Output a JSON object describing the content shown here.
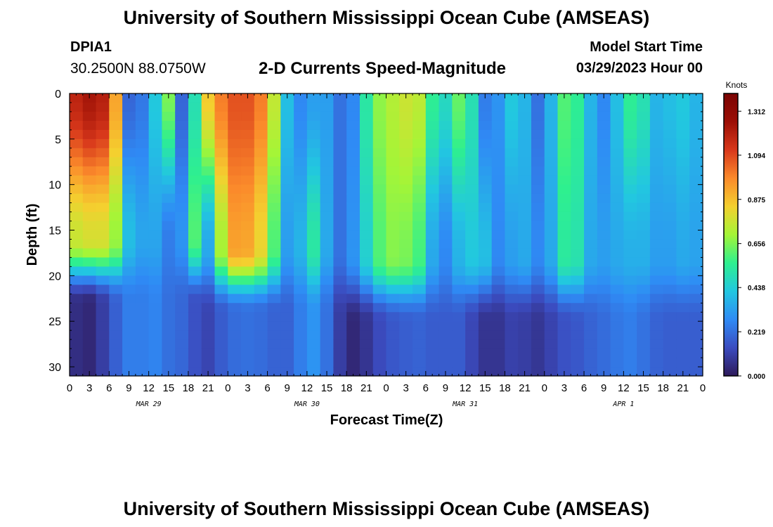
{
  "header": {
    "title": "University of Southern Mississippi Ocean Cube (AMSEAS)",
    "station_name": "DPIA1",
    "station_coords": "30.2500N  88.0750W",
    "subtitle": "2-D Currents Speed-Magnitude",
    "model_start_label": "Model Start Time",
    "model_start_value": "03/29/2023 Hour 00"
  },
  "footer": {
    "title": "University of Southern Mississippi Ocean Cube (AMSEAS)"
  },
  "chart_data": {
    "type": "heatmap",
    "title": "2-D Currents Speed-Magnitude",
    "xlabel": "Forecast Time(Z)",
    "ylabel": "Depth (ft)",
    "xlim": [
      0,
      96
    ],
    "ylim": [
      0,
      31
    ],
    "y_inverted": true,
    "x_tick_labels": [
      "0",
      "3",
      "6",
      "9",
      "12",
      "15",
      "18",
      "21",
      "0",
      "3",
      "6",
      "9",
      "12",
      "15",
      "18",
      "21",
      "0",
      "3",
      "6",
      "9",
      "12",
      "15",
      "18",
      "21",
      "0",
      "3",
      "6",
      "9",
      "12",
      "15",
      "18",
      "21",
      "0"
    ],
    "y_tick_labels": [
      "0",
      "5",
      "10",
      "15",
      "20",
      "25",
      "30"
    ],
    "y_tick_values": [
      0,
      5,
      10,
      15,
      20,
      25,
      30
    ],
    "date_labels": [
      {
        "label": "MAR 29",
        "hour": 12
      },
      {
        "label": "MAR 30",
        "hour": 36
      },
      {
        "label": "MAR 31",
        "hour": 60
      },
      {
        "label": "APR 1",
        "hour": 84
      }
    ],
    "colorbar": {
      "label": "Knots",
      "min": 0.0,
      "max": 1.4,
      "tick_labels": [
        "1.312",
        "1.094",
        "0.875",
        "0.656",
        "0.438",
        "0.219",
        "0.000"
      ],
      "tick_values": [
        1.312,
        1.094,
        0.875,
        0.656,
        0.438,
        0.219,
        0.0
      ],
      "colors": [
        "#2e1a5a",
        "#3b4cc0",
        "#2f8bf5",
        "#22c7e0",
        "#2ef08f",
        "#a4f537",
        "#f4d02f",
        "#fb8a2b",
        "#d8381b",
        "#9c0f06",
        "#7a0403"
      ]
    },
    "depths": [
      0,
      1,
      2,
      3,
      4,
      5,
      6,
      7,
      8,
      9,
      10,
      11,
      12,
      13,
      14,
      15,
      16,
      17,
      18,
      19,
      20,
      21,
      22,
      23,
      24,
      25,
      26,
      27,
      28,
      29,
      30,
      31
    ],
    "hours": [
      0,
      2,
      4,
      6,
      8,
      10,
      12,
      14,
      16,
      18,
      20,
      22,
      24,
      26,
      28,
      30,
      32,
      34,
      36,
      38,
      40,
      42,
      44,
      46,
      48,
      50,
      52,
      54,
      56,
      58,
      60,
      62,
      64,
      66,
      68,
      70,
      72,
      74,
      76,
      78,
      80,
      82,
      84,
      86,
      88,
      90,
      92,
      94,
      96
    ],
    "profiles": [
      {
        "hour": 0,
        "surface": 1.15,
        "mid": 0.75,
        "bottom": 0.08,
        "cline": 20
      },
      {
        "hour": 2,
        "surface": 1.22,
        "mid": 0.78,
        "bottom": 0.03,
        "cline": 20
      },
      {
        "hour": 4,
        "surface": 1.25,
        "mid": 0.8,
        "bottom": 0.05,
        "cline": 20
      },
      {
        "hour": 6,
        "surface": 1.15,
        "mid": 0.78,
        "bottom": 0.15,
        "cline": 20
      },
      {
        "hour": 8,
        "surface": 0.7,
        "mid": 0.6,
        "bottom": 0.22,
        "cline": 20
      },
      {
        "hour": 9,
        "surface": 0.2,
        "mid": 0.4,
        "bottom": 0.25,
        "cline": 20
      },
      {
        "hour": 10,
        "surface": 0.18,
        "mid": 0.3,
        "bottom": 0.22,
        "cline": 20
      },
      {
        "hour": 12,
        "surface": 0.3,
        "mid": 0.38,
        "bottom": 0.28,
        "cline": 20
      },
      {
        "hour": 14,
        "surface": 0.55,
        "mid": 0.3,
        "bottom": 0.25,
        "cline": 20
      },
      {
        "hour": 15,
        "surface": 0.65,
        "mid": 0.25,
        "bottom": 0.22,
        "cline": 20
      },
      {
        "hour": 16,
        "surface": 0.4,
        "mid": 0.28,
        "bottom": 0.2,
        "cline": 20
      },
      {
        "hour": 17,
        "surface": 0.2,
        "mid": 0.3,
        "bottom": 0.2,
        "cline": 20
      },
      {
        "hour": 18,
        "surface": 0.45,
        "mid": 0.45,
        "bottom": 0.2,
        "cline": 20
      },
      {
        "hour": 19,
        "surface": 0.5,
        "mid": 0.6,
        "bottom": 0.15,
        "cline": 20
      },
      {
        "hour": 20,
        "surface": 0.95,
        "mid": 0.4,
        "bottom": 0.12,
        "cline": 20
      },
      {
        "hour": 21,
        "surface": 0.85,
        "mid": 0.35,
        "bottom": 0.12,
        "cline": 21
      },
      {
        "hour": 22,
        "surface": 0.95,
        "mid": 0.5,
        "bottom": 0.15,
        "cline": 21
      },
      {
        "hour": 24,
        "surface": 1.05,
        "mid": 0.92,
        "bottom": 0.2,
        "cline": 21
      },
      {
        "hour": 26,
        "surface": 1.1,
        "mid": 0.95,
        "bottom": 0.22,
        "cline": 21
      },
      {
        "hour": 28,
        "surface": 1.05,
        "mid": 0.9,
        "bottom": 0.22,
        "cline": 21
      },
      {
        "hour": 30,
        "surface": 0.95,
        "mid": 0.75,
        "bottom": 0.2,
        "cline": 21
      },
      {
        "hour": 32,
        "surface": 0.55,
        "mid": 0.45,
        "bottom": 0.18,
        "cline": 21
      },
      {
        "hour": 34,
        "surface": 0.25,
        "mid": 0.2,
        "bottom": 0.2,
        "cline": 21
      },
      {
        "hour": 36,
        "surface": 0.3,
        "mid": 0.55,
        "bottom": 0.3,
        "cline": 21
      },
      {
        "hour": 38,
        "surface": 0.35,
        "mid": 0.5,
        "bottom": 0.3,
        "cline": 21
      },
      {
        "hour": 40,
        "surface": 0.3,
        "mid": 0.2,
        "bottom": 0.15,
        "cline": 21
      },
      {
        "hour": 42,
        "surface": 0.15,
        "mid": 0.25,
        "bottom": 0.05,
        "cline": 22
      },
      {
        "hour": 44,
        "surface": 0.4,
        "mid": 0.35,
        "bottom": 0.03,
        "cline": 22
      },
      {
        "hour": 46,
        "surface": 0.65,
        "mid": 0.55,
        "bottom": 0.12,
        "cline": 22
      },
      {
        "hour": 48,
        "surface": 0.7,
        "mid": 0.65,
        "bottom": 0.15,
        "cline": 22
      },
      {
        "hour": 50,
        "surface": 0.75,
        "mid": 0.68,
        "bottom": 0.18,
        "cline": 22
      },
      {
        "hour": 52,
        "surface": 0.78,
        "mid": 0.62,
        "bottom": 0.18,
        "cline": 22
      },
      {
        "hour": 54,
        "surface": 0.7,
        "mid": 0.55,
        "bottom": 0.2,
        "cline": 22
      },
      {
        "hour": 56,
        "surface": 0.4,
        "mid": 0.15,
        "bottom": 0.15,
        "cline": 22
      },
      {
        "hour": 58,
        "surface": 0.55,
        "mid": 0.4,
        "bottom": 0.2,
        "cline": 22
      },
      {
        "hour": 60,
        "surface": 0.7,
        "mid": 0.35,
        "bottom": 0.15,
        "cline": 22
      },
      {
        "hour": 62,
        "surface": 0.3,
        "mid": 0.5,
        "bottom": 0.1,
        "cline": 22
      },
      {
        "hour": 64,
        "surface": 0.2,
        "mid": 0.3,
        "bottom": 0.05,
        "cline": 22
      },
      {
        "hour": 66,
        "surface": 0.4,
        "mid": 0.25,
        "bottom": 0.1,
        "cline": 22
      },
      {
        "hour": 68,
        "surface": 0.45,
        "mid": 0.4,
        "bottom": 0.12,
        "cline": 22
      },
      {
        "hour": 70,
        "surface": 0.3,
        "mid": 0.3,
        "bottom": 0.08,
        "cline": 22
      },
      {
        "hour": 72,
        "surface": 0.15,
        "mid": 0.25,
        "bottom": 0.08,
        "cline": 22
      },
      {
        "hour": 74,
        "surface": 0.6,
        "mid": 0.45,
        "bottom": 0.15,
        "cline": 22
      },
      {
        "hour": 76,
        "surface": 0.6,
        "mid": 0.62,
        "bottom": 0.15,
        "cline": 22
      },
      {
        "hour": 78,
        "surface": 0.5,
        "mid": 0.4,
        "bottom": 0.18,
        "cline": 22
      },
      {
        "hour": 80,
        "surface": 0.25,
        "mid": 0.3,
        "bottom": 0.2,
        "cline": 22
      },
      {
        "hour": 82,
        "surface": 0.3,
        "mid": 0.35,
        "bottom": 0.22,
        "cline": 22
      },
      {
        "hour": 84,
        "surface": 0.5,
        "mid": 0.35,
        "bottom": 0.25,
        "cline": 22
      },
      {
        "hour": 86,
        "surface": 0.6,
        "mid": 0.38,
        "bottom": 0.25,
        "cline": 22
      },
      {
        "hour": 88,
        "surface": 0.4,
        "mid": 0.35,
        "bottom": 0.2,
        "cline": 22
      },
      {
        "hour": 90,
        "surface": 0.35,
        "mid": 0.3,
        "bottom": 0.18,
        "cline": 22
      },
      {
        "hour": 92,
        "surface": 0.45,
        "mid": 0.35,
        "bottom": 0.18,
        "cline": 22
      },
      {
        "hour": 94,
        "surface": 0.4,
        "mid": 0.35,
        "bottom": 0.18,
        "cline": 22
      },
      {
        "hour": 96,
        "surface": 0.35,
        "mid": 0.32,
        "bottom": 0.18,
        "cline": 22
      }
    ]
  }
}
